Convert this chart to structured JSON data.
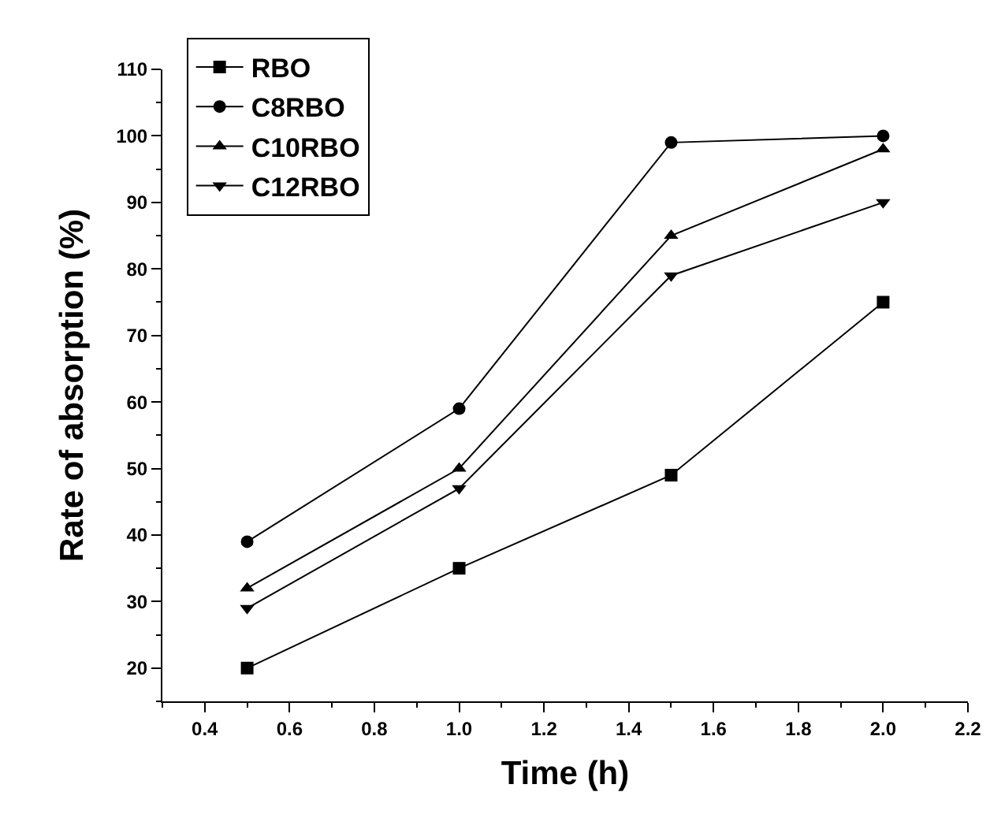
{
  "chart_data": {
    "type": "line",
    "xlabel": "Time (h)",
    "ylabel": "Rate of absorption (%)",
    "x": [
      0.5,
      1.0,
      1.5,
      2.0
    ],
    "series": [
      {
        "name": "RBO",
        "color": "#000000",
        "marker": "square",
        "values": [
          20,
          35,
          49,
          75
        ]
      },
      {
        "name": "C8RBO",
        "color": "#000000",
        "marker": "circle",
        "values": [
          39,
          59,
          99,
          100
        ]
      },
      {
        "name": "C10RBO",
        "color": "#000000",
        "marker": "triangle",
        "values": [
          32,
          50,
          85,
          98
        ]
      },
      {
        "name": "C12RBO",
        "color": "#000000",
        "marker": "triangle-down",
        "values": [
          29,
          47,
          79,
          90
        ]
      }
    ],
    "xlim": [
      0.3,
      2.2
    ],
    "xticks": [
      {
        "value": 0.4,
        "label": "0.4"
      },
      {
        "value": 0.6,
        "label": "0.6"
      },
      {
        "value": 0.8,
        "label": "0.8"
      },
      {
        "value": 1.0,
        "label": "1.0"
      },
      {
        "value": 1.2,
        "label": "1.2"
      },
      {
        "value": 1.4,
        "label": "1.4"
      },
      {
        "value": 1.6,
        "label": "1.6"
      },
      {
        "value": 1.8,
        "label": "1.8"
      },
      {
        "value": 2.0,
        "label": "2.0"
      },
      {
        "value": 2.2,
        "label": "2.2"
      }
    ],
    "ylim": [
      15,
      110
    ],
    "yticks": [
      20,
      30,
      40,
      50,
      60,
      70,
      80,
      90,
      100,
      110
    ],
    "grid": false,
    "legend": "top left",
    "line_style": "solid"
  }
}
